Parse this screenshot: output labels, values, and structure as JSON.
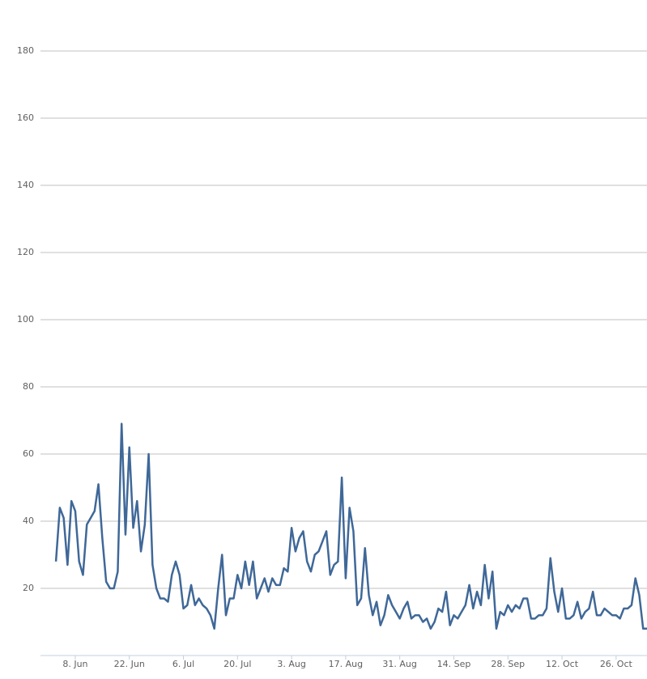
{
  "chart_data": {
    "type": "line",
    "x": [
      "06-03",
      "06-04",
      "06-05",
      "06-06",
      "06-07",
      "06-08",
      "06-09",
      "06-10",
      "06-11",
      "06-12",
      "06-13",
      "06-14",
      "06-15",
      "06-16",
      "06-17",
      "06-18",
      "06-19",
      "06-20",
      "06-21",
      "06-22",
      "06-23",
      "06-24",
      "06-25",
      "06-26",
      "06-27",
      "06-28",
      "06-29",
      "06-30",
      "07-01",
      "07-02",
      "07-03",
      "07-04",
      "07-05",
      "07-06",
      "07-07",
      "07-08",
      "07-09",
      "07-10",
      "07-11",
      "07-12",
      "07-13",
      "07-14",
      "07-15",
      "07-16",
      "07-17",
      "07-18",
      "07-19",
      "07-20",
      "07-21",
      "07-22",
      "07-23",
      "07-24",
      "07-25",
      "07-26",
      "07-27",
      "07-28",
      "07-29",
      "07-30",
      "07-31",
      "08-01",
      "08-02",
      "08-03",
      "08-04",
      "08-05",
      "08-06",
      "08-07",
      "08-08",
      "08-09",
      "08-10",
      "08-11",
      "08-12",
      "08-13",
      "08-14",
      "08-15",
      "08-16",
      "08-17",
      "08-18",
      "08-19",
      "08-20",
      "08-21",
      "08-22",
      "08-23",
      "08-24",
      "08-25",
      "08-26",
      "08-27",
      "08-28",
      "08-29",
      "08-30",
      "08-31",
      "09-01",
      "09-02",
      "09-03",
      "09-04",
      "09-05",
      "09-06",
      "09-07",
      "09-08",
      "09-09",
      "09-10",
      "09-11",
      "09-12",
      "09-13",
      "09-14",
      "09-15",
      "09-16",
      "09-17",
      "09-18",
      "09-19",
      "09-20",
      "09-21",
      "09-22",
      "09-23",
      "09-24",
      "09-25",
      "09-26",
      "09-27",
      "09-28",
      "09-29",
      "09-30",
      "10-01",
      "10-02",
      "10-03",
      "10-04",
      "10-05",
      "10-06",
      "10-07",
      "10-08",
      "10-09",
      "10-10",
      "10-11",
      "10-12",
      "10-13",
      "10-14",
      "10-15",
      "10-16",
      "10-17",
      "10-18",
      "10-19",
      "10-20",
      "10-21",
      "10-22",
      "10-23",
      "10-24",
      "10-25",
      "10-26",
      "10-27",
      "10-28",
      "10-29",
      "10-30",
      "10-31",
      "11-01",
      "11-02",
      "11-03"
    ],
    "series": [
      {
        "color": "#3f6898",
        "values": [
          28,
          44,
          41,
          27,
          46,
          43,
          28,
          24,
          39,
          41,
          43,
          51,
          35,
          22,
          20,
          20,
          25,
          69,
          36,
          62,
          38,
          46,
          31,
          39,
          60,
          27,
          20,
          17,
          17,
          16,
          24,
          28,
          24,
          14,
          15,
          21,
          15,
          17,
          15,
          14,
          12,
          8,
          20,
          30,
          12,
          17,
          17,
          24,
          20,
          28,
          21,
          28,
          17,
          20,
          23,
          19,
          23,
          21,
          21,
          26,
          25,
          38,
          31,
          35,
          37,
          28,
          25,
          30,
          31,
          34,
          37,
          24,
          27,
          28,
          53,
          23,
          44,
          37,
          15,
          17,
          32,
          18,
          12,
          16,
          9,
          12,
          18,
          15,
          13,
          11,
          14,
          16,
          11,
          12,
          12,
          10,
          11,
          8,
          10,
          14,
          13,
          19,
          9,
          12,
          11,
          13,
          15,
          21,
          14,
          19,
          15,
          27,
          17,
          25,
          8,
          13,
          12,
          15,
          13,
          15,
          14,
          17,
          17,
          11,
          11,
          12,
          12,
          14,
          29,
          19,
          13,
          20,
          11,
          11,
          12,
          16,
          11,
          13,
          14,
          19,
          12,
          12,
          14,
          13,
          12,
          12,
          11,
          14,
          14,
          15,
          23,
          18,
          8,
          8
        ]
      }
    ],
    "xlim": [
      "05-30",
      "11-03"
    ],
    "xticks": [
      {
        "value": "06-08",
        "label": "8. Jun"
      },
      {
        "value": "06-22",
        "label": "22. Jun"
      },
      {
        "value": "07-06",
        "label": "6. Jul"
      },
      {
        "value": "07-20",
        "label": "20. Jul"
      },
      {
        "value": "08-03",
        "label": "3. Aug"
      },
      {
        "value": "08-17",
        "label": "17. Aug"
      },
      {
        "value": "08-31",
        "label": "31. Aug"
      },
      {
        "value": "09-14",
        "label": "14. Sep"
      },
      {
        "value": "09-28",
        "label": "28. Sep"
      },
      {
        "value": "10-12",
        "label": "12. Oct"
      },
      {
        "value": "10-26",
        "label": "26. Oct"
      }
    ],
    "ylim": [
      0,
      180
    ],
    "yticks": [
      20,
      40,
      60,
      80,
      100,
      120,
      140,
      160,
      180
    ],
    "grid": true
  }
}
